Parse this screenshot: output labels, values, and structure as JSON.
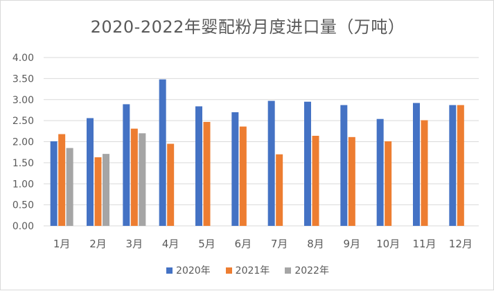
{
  "chart_data": {
    "type": "bar",
    "title": "2020-2022年婴配粉月度进口量（万吨）",
    "categories": [
      "1月",
      "2月",
      "3月",
      "4月",
      "5月",
      "6月",
      "7月",
      "8月",
      "9月",
      "10月",
      "11月",
      "12月"
    ],
    "series": [
      {
        "name": "2020年",
        "color": "#4472c4",
        "values": [
          2.01,
          2.56,
          2.89,
          3.48,
          2.84,
          2.7,
          2.97,
          2.95,
          2.87,
          2.54,
          2.92,
          2.87
        ]
      },
      {
        "name": "2021年",
        "color": "#ed7d31",
        "values": [
          2.18,
          1.63,
          2.31,
          1.95,
          2.47,
          2.36,
          1.7,
          2.14,
          2.11,
          2.01,
          2.51,
          2.87
        ]
      },
      {
        "name": "2022年",
        "color": "#a5a5a5",
        "values": [
          1.85,
          1.71,
          2.2,
          null,
          null,
          null,
          null,
          null,
          null,
          null,
          null,
          null
        ]
      }
    ],
    "yticks": [
      "0.00",
      "0.50",
      "1.00",
      "1.50",
      "2.00",
      "2.50",
      "3.00",
      "3.50",
      "4.00"
    ],
    "ylim": [
      0,
      4
    ],
    "grid": true,
    "legend_position": "bottom"
  }
}
